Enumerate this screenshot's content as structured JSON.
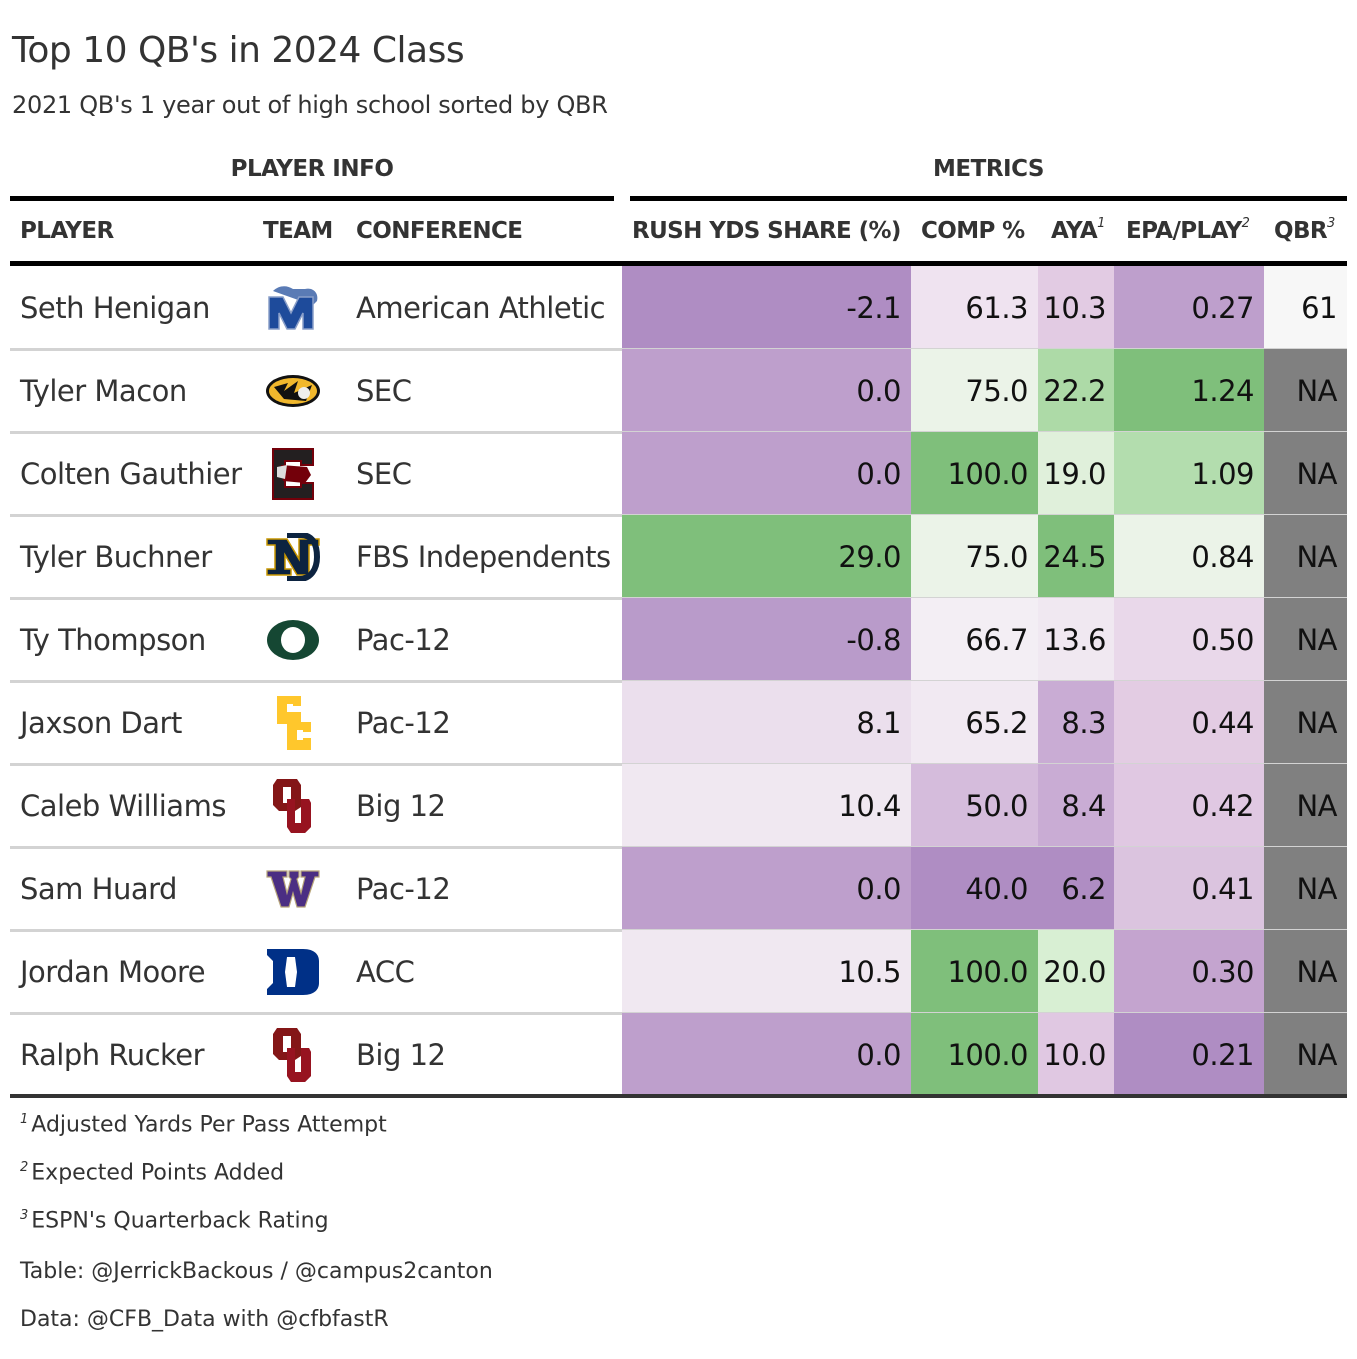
{
  "title": "Top 10 QB's in 2024 Class",
  "subtitle": "2021 QB's 1 year out of high school sorted by QBR",
  "spanners": {
    "player_info": "PLAYER INFO",
    "metrics": "METRICS"
  },
  "columns": {
    "player": "PLAYER",
    "team": "TEAM",
    "conference": "CONFERENCE",
    "rush_share": "RUSH YDS SHARE (%)",
    "comp_pct": "COMP %",
    "aya": "AYA",
    "aya_note": "1",
    "epa": "EPA/PLAY",
    "epa_note": "2",
    "qbr": "QBR",
    "qbr_note": "3"
  },
  "palette": {
    "low": "#af8dc3",
    "mid": "#f7f7f7",
    "high": "#7fbf7b",
    "na": "#808080"
  },
  "chart_data": {
    "type": "table",
    "title": "Top 10 QB's in 2024 Class",
    "subtitle": "2021 QB's 1 year out of high school sorted by QBR",
    "columns": [
      "PLAYER",
      "TEAM",
      "CONFERENCE",
      "RUSH YDS SHARE (%)",
      "COMP %",
      "AYA",
      "EPA/PLAY",
      "QBR"
    ],
    "rows": [
      {
        "player": "Seth Henigan",
        "team_logo": "memphis-logo-icon",
        "conference": "American Athletic",
        "rush_share": "-2.1",
        "comp_pct": "61.3",
        "aya": "10.3",
        "epa": "0.27",
        "qbr": "61"
      },
      {
        "player": "Tyler Macon",
        "team_logo": "missouri-logo-icon",
        "conference": "SEC",
        "rush_share": "0.0",
        "comp_pct": "75.0",
        "aya": "22.2",
        "epa": "1.24",
        "qbr": "NA"
      },
      {
        "player": "Colten Gauthier",
        "team_logo": "south-carolina-logo-icon",
        "conference": "SEC",
        "rush_share": "0.0",
        "comp_pct": "100.0",
        "aya": "19.0",
        "epa": "1.09",
        "qbr": "NA"
      },
      {
        "player": "Tyler Buchner",
        "team_logo": "notre-dame-logo-icon",
        "conference": "FBS Independents",
        "rush_share": "29.0",
        "comp_pct": "75.0",
        "aya": "24.5",
        "epa": "0.84",
        "qbr": "NA"
      },
      {
        "player": "Ty Thompson",
        "team_logo": "oregon-logo-icon",
        "conference": "Pac-12",
        "rush_share": "-0.8",
        "comp_pct": "66.7",
        "aya": "13.6",
        "epa": "0.50",
        "qbr": "NA"
      },
      {
        "player": "Jaxson Dart",
        "team_logo": "usc-logo-icon",
        "conference": "Pac-12",
        "rush_share": "8.1",
        "comp_pct": "65.2",
        "aya": "8.3",
        "epa": "0.44",
        "qbr": "NA"
      },
      {
        "player": "Caleb Williams",
        "team_logo": "oklahoma-logo-icon",
        "conference": "Big 12",
        "rush_share": "10.4",
        "comp_pct": "50.0",
        "aya": "8.4",
        "epa": "0.42",
        "qbr": "NA"
      },
      {
        "player": "Sam Huard",
        "team_logo": "washington-logo-icon",
        "conference": "Pac-12",
        "rush_share": "0.0",
        "comp_pct": "40.0",
        "aya": "6.2",
        "epa": "0.41",
        "qbr": "NA"
      },
      {
        "player": "Jordan Moore",
        "team_logo": "duke-logo-icon",
        "conference": "ACC",
        "rush_share": "10.5",
        "comp_pct": "100.0",
        "aya": "20.0",
        "epa": "0.30",
        "qbr": "NA"
      },
      {
        "player": "Ralph Rucker",
        "team_logo": "oklahoma-logo-icon",
        "conference": "Big 12",
        "rush_share": "0.0",
        "comp_pct": "100.0",
        "aya": "10.0",
        "epa": "0.21",
        "qbr": "NA"
      }
    ],
    "cell_colors": [
      [
        "#af8dc3",
        "#efe3f0",
        "#e2cbe3",
        "#be9fcc",
        "#f7f7f7"
      ],
      [
        "#be9fcc",
        "#ebf3e8",
        "#addaa7",
        "#7fbf7b",
        "#808080"
      ],
      [
        "#be9fcc",
        "#7fbf7b",
        "#e0f0db",
        "#b3ddae",
        "#808080"
      ],
      [
        "#7fbf7b",
        "#ebf3e8",
        "#7fbf7b",
        "#ebf3e8",
        "#808080"
      ],
      [
        "#b99bca",
        "#f3eef4",
        "#f0e8f1",
        "#e9d8ea",
        "#808080"
      ],
      [
        "#ebdfed",
        "#f1e9f2",
        "#c9acd4",
        "#e3cce3",
        "#808080"
      ],
      [
        "#f0e8f1",
        "#d5bcdc",
        "#c9acd4",
        "#e0c8e2",
        "#808080"
      ],
      [
        "#be9fcc",
        "#af8dc3",
        "#af8dc3",
        "#dbc4df",
        "#808080"
      ],
      [
        "#f0e8f1",
        "#7fbf7b",
        "#d8efd3",
        "#c4a4cf",
        "#808080"
      ],
      [
        "#be9fcc",
        "#7fbf7b",
        "#e0c8e2",
        "#af8dc3",
        "#808080"
      ]
    ]
  },
  "footnotes": [
    {
      "mark": "1",
      "text": "Adjusted Yards Per Pass Attempt"
    },
    {
      "mark": "2",
      "text": "Expected Points Added"
    },
    {
      "mark": "3",
      "text": "ESPN's Quarterback Rating"
    }
  ],
  "source_notes": [
    "Table: @JerrickBackous / @campus2canton",
    "Data: @CFB_Data with @cfbfastR"
  ]
}
